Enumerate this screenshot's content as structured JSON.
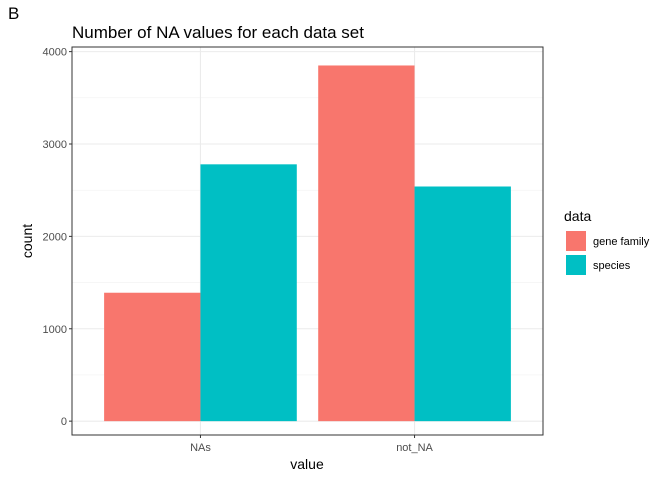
{
  "panel_label": "B",
  "chart_data": {
    "type": "bar",
    "title": "Number of NA values for each data set",
    "xlabel": "value",
    "ylabel": "count",
    "categories": [
      "NAs",
      "not_NA"
    ],
    "series": [
      {
        "name": "gene family",
        "color": "#F8766D",
        "values": [
          1390,
          3850
        ]
      },
      {
        "name": "species",
        "color": "#00BFC4",
        "values": [
          2780,
          2540
        ]
      }
    ],
    "ylim": [
      -150,
      4050
    ],
    "yticks": [
      0,
      1000,
      2000,
      3000,
      4000
    ],
    "ytick_labels": [
      "0",
      "1000",
      "2000",
      "3000",
      "4000"
    ],
    "grid": true,
    "legend": {
      "title": "data",
      "position": "right"
    }
  }
}
